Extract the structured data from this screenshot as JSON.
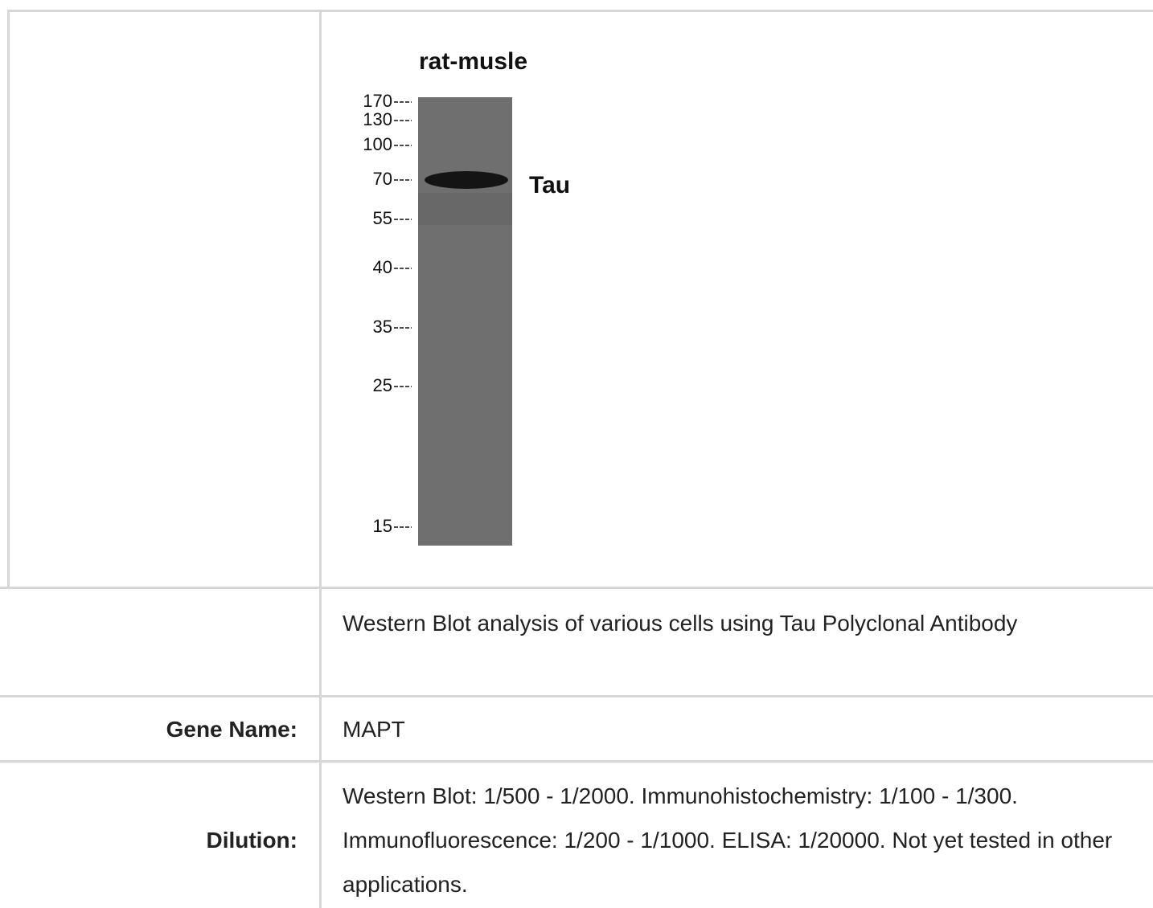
{
  "figure": {
    "sample": "rat-musle",
    "markers": [
      "170",
      "130",
      "100",
      "70",
      "55",
      "40",
      "35",
      "25",
      "15"
    ],
    "band_label": "Tau"
  },
  "caption": "Western Blot analysis of various cells using Tau Polyclonal Antibody",
  "rows": [
    {
      "label": "Gene Name:",
      "value": "MAPT"
    },
    {
      "label": "Dilution:",
      "value": "Western Blot: 1/500 - 1/2000. Immunohistochemistry: 1/100 - 1/300. Immunofluorescence: 1/200 - 1/1000. ELISA: 1/20000. Not yet tested in other applications."
    }
  ]
}
